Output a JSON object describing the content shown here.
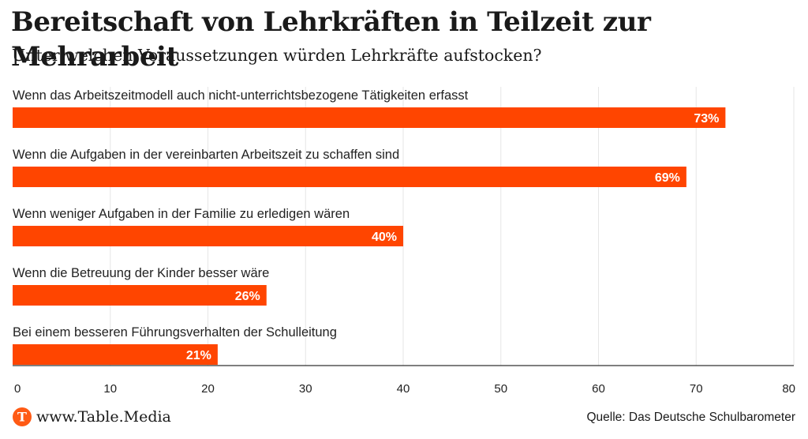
{
  "colors": {
    "bar": "#ff4500",
    "logo": "#ff5a14",
    "grid": "#e6e6e6",
    "axis": "#333333"
  },
  "chart_data": {
    "type": "bar",
    "orientation": "horizontal",
    "title": "Bereitschaft von Lehrkräften in Teilzeit zur Mehrarbeit",
    "subtitle": "Unter welchen Voraussetzungen würden Lehrkräfte aufstocken?",
    "categories": [
      "Wenn das Arbeitszeitmodell auch nicht-unterrichtsbezogene Tätigkeiten erfasst",
      "Wenn die Aufgaben in der vereinbarten Arbeitszeit zu schaffen sind",
      "Wenn weniger Aufgaben in der Familie zu erledigen wären",
      "Wenn die Betreuung der Kinder besser wäre",
      "Bei einem besseren Führungsverhalten der Schulleitung"
    ],
    "values": [
      73,
      69,
      40,
      26,
      21
    ],
    "value_labels": [
      "73%",
      "69%",
      "40%",
      "26%",
      "21%"
    ],
    "xlim": [
      0,
      80
    ],
    "xticks": [
      "0",
      "10",
      "20",
      "30",
      "40",
      "50",
      "60",
      "70",
      "80"
    ],
    "grid": true
  },
  "footer": {
    "logo_letter": "T",
    "site": "www.Table.Media",
    "source": "Quelle: Das Deutsche Schulbarometer"
  }
}
